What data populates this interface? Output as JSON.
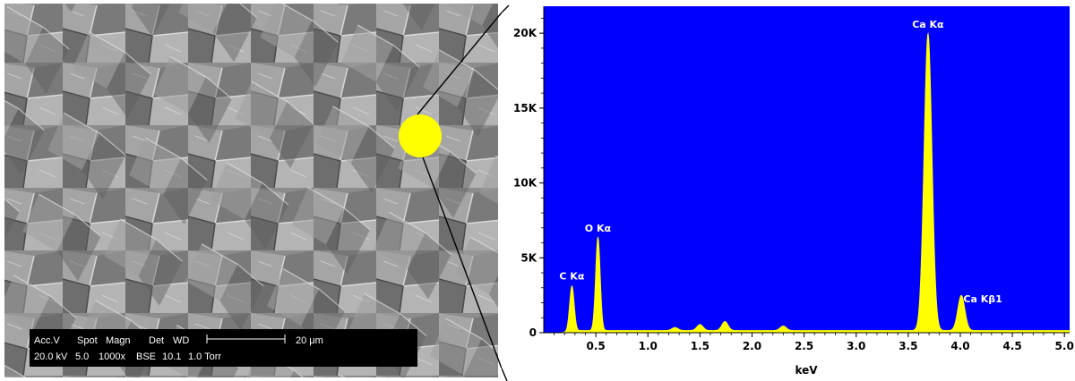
{
  "colors": {
    "plot_background": "#0000ff",
    "spectrum": "#ffff00",
    "marker": "#ffff00"
  },
  "sem": {
    "header": [
      "Acc.V",
      "Spot",
      "Magn",
      "Det",
      "WD"
    ],
    "values": [
      "20.0 kV",
      "5.0",
      "1000x",
      "BSE",
      "10.1",
      "1.0 Torr"
    ],
    "scale_label": "20 μm"
  },
  "chart_data": {
    "type": "area",
    "xlabel": "keV",
    "ylabel": "",
    "xlim": [
      0,
      5.05
    ],
    "ylim": [
      0,
      21800
    ],
    "x_ticks": [
      0.5,
      1.0,
      1.5,
      2.0,
      2.5,
      3.0,
      3.5,
      4.0,
      4.5,
      5.0
    ],
    "x_tick_labels": [
      "0.5",
      "1.0",
      "1.5",
      "2.0",
      "2.5",
      "3.0",
      "3.5",
      "4.0",
      "4.5",
      "5.0"
    ],
    "y_ticks": [
      0,
      5000,
      10000,
      15000,
      20000
    ],
    "y_tick_labels": [
      "0",
      "5K",
      "10K",
      "15K",
      "20K"
    ],
    "peaks": [
      {
        "label": "C Kα",
        "x": 0.27,
        "y": 3200
      },
      {
        "label": "O Kα",
        "x": 0.52,
        "y": 6400
      },
      {
        "label": "Ca Kα",
        "x": 3.69,
        "y": 20000
      },
      {
        "label": "Ca Kβ1",
        "x": 4.01,
        "y": 2500
      }
    ],
    "minor_peaks": [
      {
        "x": 1.26,
        "y": 200
      },
      {
        "x": 1.5,
        "y": 400
      },
      {
        "x": 1.74,
        "y": 600
      },
      {
        "x": 2.3,
        "y": 300
      }
    ],
    "background_level": 150
  }
}
